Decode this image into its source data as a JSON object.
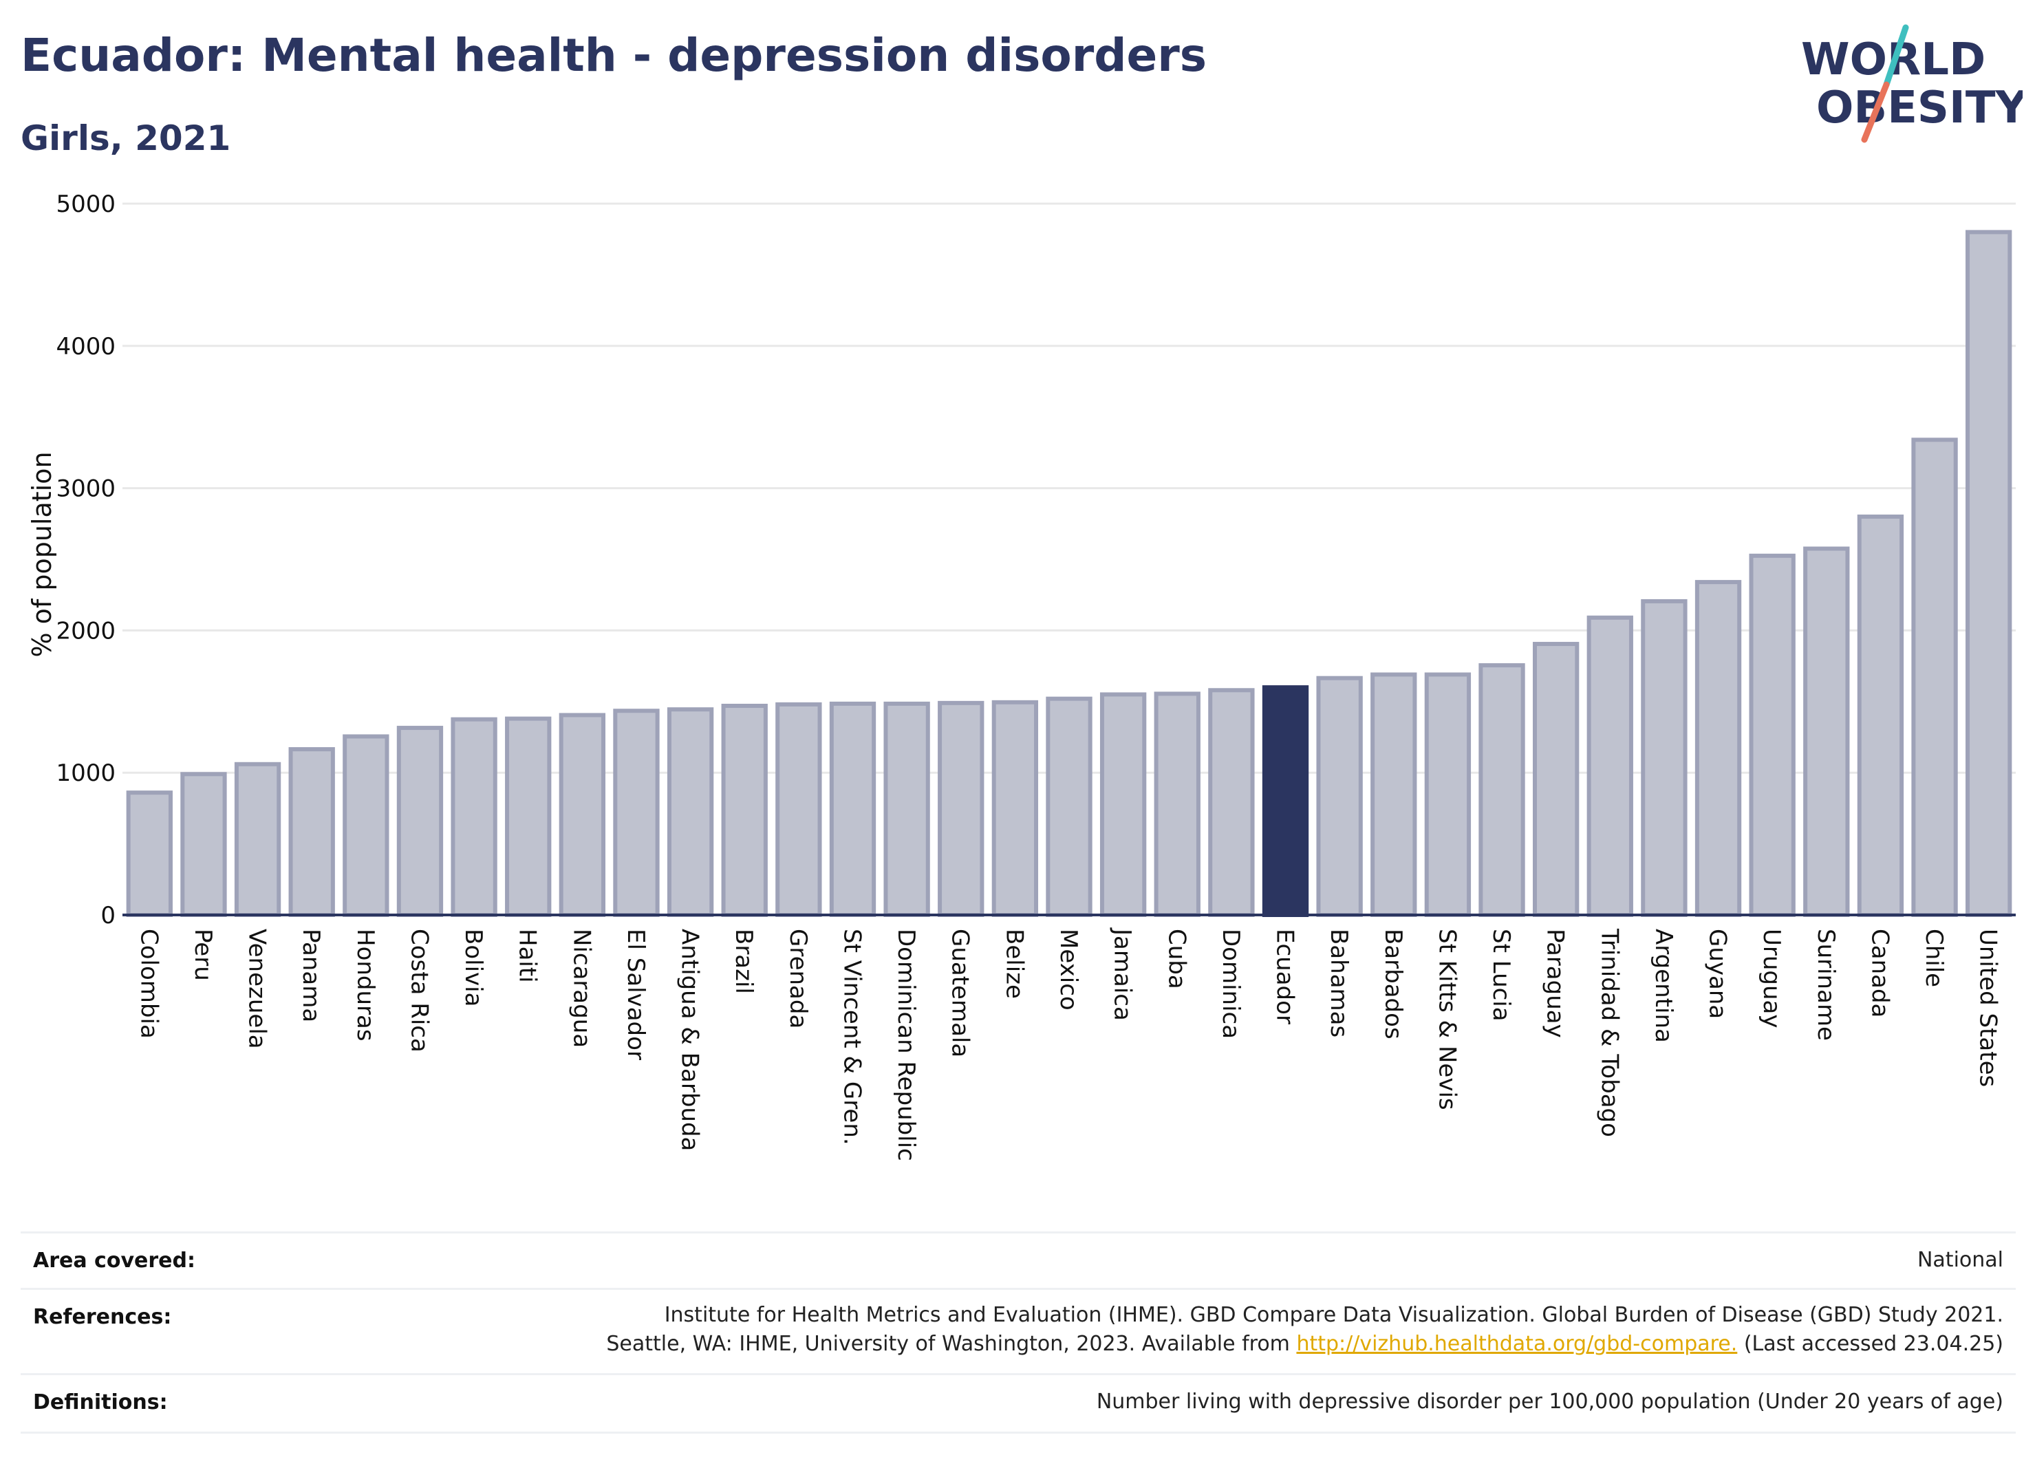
{
  "header": {
    "title": "Ecuador: Mental health - depression disorders",
    "subtitle": "Girls, 2021"
  },
  "logo": {
    "line1": "WORLD",
    "line2": "OBESITY",
    "slash_colors": [
      "#3fbfbf",
      "#e8735a"
    ]
  },
  "colors": {
    "bar": "#bfc2cf",
    "bar_border": "#9ea2b8",
    "highlight": "#2b3560",
    "grid": "#e8e8e8",
    "axis": "#2b3560"
  },
  "chart_data": {
    "type": "bar",
    "ylabel": "% of population",
    "ylim": [
      0,
      5000
    ],
    "yticks": [
      0,
      1000,
      2000,
      3000,
      4000,
      5000
    ],
    "grid": true,
    "highlight": "Ecuador",
    "categories": [
      "Colombia",
      "Peru",
      "Venezuela",
      "Panama",
      "Honduras",
      "Costa Rica",
      "Bolivia",
      "Haiti",
      "Nicaragua",
      "El Salvador",
      "Antigua & Barbuda",
      "Brazil",
      "Grenada",
      "St Vincent & Gren.",
      "Dominican Republic",
      "Guatemala",
      "Belize",
      "Mexico",
      "Jamaica",
      "Cuba",
      "Dominica",
      "Ecuador",
      "Bahamas",
      "Barbados",
      "St Kitts & Nevis",
      "St Lucia",
      "Paraguay",
      "Trinidad & Tobago",
      "Argentina",
      "Guyana",
      "Uruguay",
      "Suriname",
      "Canada",
      "Chile",
      "United States"
    ],
    "values": [
      860,
      990,
      1060,
      1165,
      1255,
      1315,
      1375,
      1380,
      1405,
      1435,
      1445,
      1470,
      1480,
      1485,
      1485,
      1490,
      1495,
      1520,
      1550,
      1555,
      1580,
      1600,
      1665,
      1690,
      1690,
      1755,
      1905,
      2090,
      2205,
      2340,
      2525,
      2575,
      2800,
      3340,
      4800
    ]
  },
  "info": {
    "area_label": "Area covered:",
    "area_value": "National",
    "references_label": "References:",
    "references_line1": "Institute for Health Metrics and Evaluation (IHME). GBD Compare Data Visualization. Global Burden of Disease (GBD) Study 2021.",
    "references_line2_pre": "Seattle, WA: IHME, University of Washington, 2023. Available from ",
    "references_link": "http://vizhub.healthdata.org/gbd-compare.",
    "references_line2_post": " (Last accessed 23.04.25)",
    "definitions_label": "Definitions:",
    "definitions_value": "Number living with depressive disorder per 100,000 population (Under 20 years of age)"
  }
}
